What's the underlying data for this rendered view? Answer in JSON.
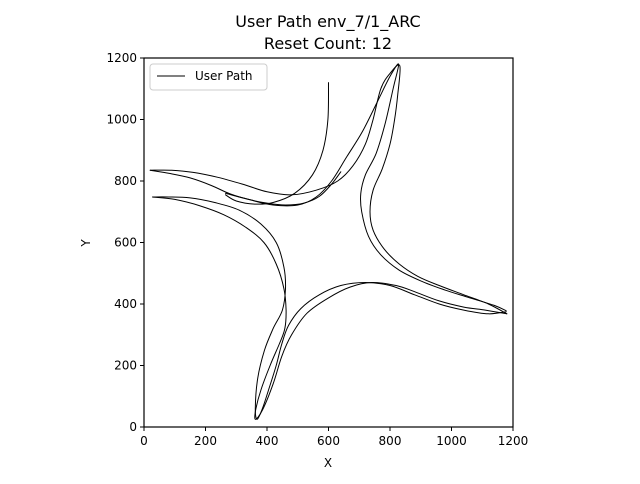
{
  "chart_data": {
    "type": "line",
    "title": "User Path env_7/1_ARC",
    "subtitle": "Reset Count: 12",
    "xlabel": "X",
    "ylabel": "Y",
    "xlim": [
      0,
      1200
    ],
    "ylim": [
      0,
      1200
    ],
    "xticks": [
      "0",
      "200",
      "400",
      "600",
      "800",
      "1000",
      "1200"
    ],
    "yticks": [
      "0",
      "200",
      "400",
      "600",
      "800",
      "1000",
      "1200"
    ],
    "grid": false,
    "legend": {
      "position": "top-left",
      "entries": [
        "User Path"
      ]
    },
    "line_color": "#000000",
    "series": [
      {
        "name": "User Path",
        "paths": [
          [
            [
              600,
              1120
            ],
            [
              598,
              1000
            ],
            [
              582,
              900
            ],
            [
              548,
              820
            ],
            [
              490,
              760
            ],
            [
              420,
              730
            ],
            [
              360,
              725
            ],
            [
              300,
              735
            ],
            [
              265,
              755
            ]
          ],
          [
            [
              265,
              760
            ],
            [
              340,
              740
            ],
            [
              420,
              722
            ],
            [
              500,
              722
            ],
            [
              560,
              748
            ],
            [
              610,
              800
            ],
            [
              660,
              880
            ],
            [
              710,
              960
            ],
            [
              760,
              1060
            ],
            [
              800,
              1140
            ],
            [
              828,
              1180
            ],
            [
              810,
              1100
            ],
            [
              785,
              990
            ],
            [
              755,
              890
            ],
            [
              720,
              820
            ],
            [
              705,
              760
            ],
            [
              708,
              700
            ],
            [
              730,
              620
            ],
            [
              770,
              560
            ],
            [
              830,
              510
            ],
            [
              900,
              475
            ],
            [
              980,
              445
            ],
            [
              1060,
              420
            ],
            [
              1140,
              395
            ],
            [
              1178,
              378
            ]
          ],
          [
            [
              1178,
              375
            ],
            [
              1120,
              368
            ],
            [
              1040,
              380
            ],
            [
              960,
              400
            ],
            [
              880,
              430
            ],
            [
              800,
              460
            ],
            [
              720,
              470
            ],
            [
              640,
              460
            ],
            [
              570,
              430
            ],
            [
              510,
              385
            ],
            [
              470,
              330
            ],
            [
              448,
              270
            ],
            [
              430,
              200
            ],
            [
              405,
              120
            ],
            [
              385,
              60
            ],
            [
              368,
              25
            ],
            [
              362,
              60
            ],
            [
              370,
              160
            ],
            [
              392,
              250
            ],
            [
              420,
              320
            ],
            [
              450,
              380
            ],
            [
              460,
              450
            ],
            [
              455,
              520
            ],
            [
              430,
              600
            ],
            [
              380,
              660
            ],
            [
              310,
              705
            ],
            [
              230,
              730
            ],
            [
              150,
              745
            ],
            [
              80,
              748
            ],
            [
              28,
              748
            ]
          ],
          [
            [
              28,
              748
            ],
            [
              100,
              740
            ],
            [
              180,
              720
            ],
            [
              260,
              690
            ],
            [
              330,
              650
            ],
            [
              390,
              600
            ],
            [
              430,
              530
            ],
            [
              455,
              450
            ],
            [
              462,
              380
            ],
            [
              458,
              320
            ],
            [
              440,
              270
            ],
            [
              410,
              200
            ],
            [
              380,
              120
            ],
            [
              364,
              60
            ],
            [
              362,
              25
            ],
            [
              385,
              55
            ],
            [
              420,
              140
            ],
            [
              448,
              230
            ],
            [
              480,
              300
            ],
            [
              530,
              370
            ],
            [
              600,
              420
            ],
            [
              670,
              455
            ],
            [
              740,
              470
            ],
            [
              820,
              460
            ],
            [
              880,
              440
            ],
            [
              960,
              410
            ],
            [
              1040,
              390
            ],
            [
              1110,
              380
            ],
            [
              1180,
              368
            ]
          ],
          [
            [
              1180,
              368
            ],
            [
              1120,
              400
            ],
            [
              1040,
              430
            ],
            [
              960,
              460
            ],
            [
              890,
              490
            ],
            [
              830,
              530
            ],
            [
              780,
              580
            ],
            [
              745,
              640
            ],
            [
              735,
              700
            ],
            [
              745,
              770
            ],
            [
              775,
              840
            ],
            [
              800,
              920
            ],
            [
              815,
              1000
            ],
            [
              825,
              1080
            ],
            [
              832,
              1175
            ],
            [
              800,
              1150
            ],
            [
              770,
              1100
            ],
            [
              745,
              1000
            ],
            [
              720,
              920
            ],
            [
              680,
              850
            ],
            [
              630,
              800
            ],
            [
              560,
              770
            ],
            [
              480,
              755
            ],
            [
              400,
              765
            ],
            [
              320,
              790
            ],
            [
              240,
              812
            ],
            [
              160,
              828
            ],
            [
              90,
              835
            ],
            [
              20,
              835
            ]
          ],
          [
            [
              20,
              835
            ],
            [
              80,
              825
            ],
            [
              150,
              810
            ],
            [
              220,
              785
            ],
            [
              280,
              758
            ],
            [
              340,
              740
            ],
            [
              400,
              728
            ],
            [
              460,
              722
            ],
            [
              520,
              728
            ],
            [
              570,
              750
            ],
            [
              610,
              790
            ],
            [
              640,
              830
            ]
          ]
        ]
      }
    ]
  }
}
